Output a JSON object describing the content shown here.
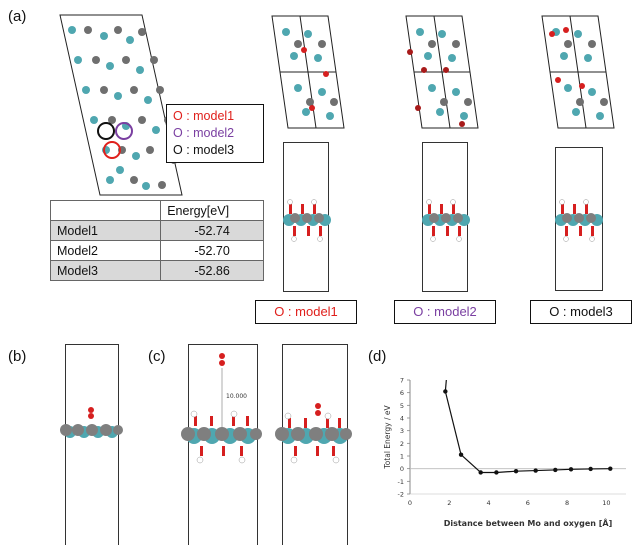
{
  "panels": {
    "a": "(a)",
    "b": "(b)",
    "c": "(c)",
    "d": "(d)"
  },
  "legend": {
    "items": [
      {
        "text": "O : model1",
        "color": "#e0201c"
      },
      {
        "text": "O : model2",
        "color": "#7a3fa1"
      },
      {
        "text": "O : model3",
        "color": "#111111"
      }
    ]
  },
  "energy_table": {
    "header": [
      "",
      "Energy[eV]"
    ],
    "rows": [
      {
        "name": "Model1",
        "value": "-52.74"
      },
      {
        "name": "Model2",
        "value": "-52.70"
      },
      {
        "name": "Model3",
        "value": "-52.86"
      }
    ]
  },
  "model_labels": [
    {
      "text": "O : model1",
      "color": "#e0201c"
    },
    {
      "text": "O : model2",
      "color": "#7a3fa1"
    },
    {
      "text": "O : model3",
      "color": "#111111"
    }
  ],
  "annotation_c": "10.000",
  "colors": {
    "mo": "#7f7f7f",
    "s_teal": "#4fa7b0",
    "oxygen": "#d61f1f",
    "hydrogen": "#f2f2f2"
  },
  "chart_data": {
    "type": "line",
    "xlabel": "Distance between Mo and oxygen [Å]",
    "ylabel": "Total Energy / eV",
    "xlim": [
      0,
      11
    ],
    "ylim": [
      -2,
      7
    ],
    "x_ticks": [
      0,
      2,
      4,
      6,
      8,
      10
    ],
    "y_ticks": [
      -2,
      -1,
      0,
      1,
      2,
      3,
      4,
      5,
      6,
      7
    ],
    "series": [
      {
        "x": [
          1.8,
          2.6,
          3.6,
          4.4,
          5.4,
          6.4,
          7.4,
          8.2,
          9.2,
          10.2
        ],
        "y": [
          6.1,
          1.1,
          -0.3,
          -0.3,
          -0.2,
          -0.15,
          -0.1,
          -0.05,
          -0.02,
          0.0
        ]
      }
    ],
    "grid": false
  }
}
